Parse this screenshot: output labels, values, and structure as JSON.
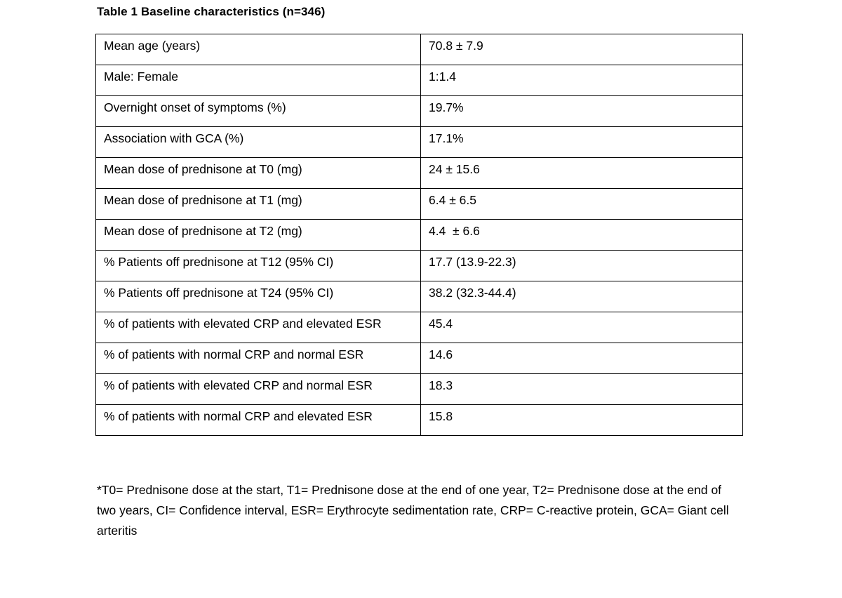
{
  "page": {
    "background": "#ffffff",
    "footnote": "*T0= Prednisone dose at the start, T1= Prednisone dose at the end of one year, T2= Prednisone dose at the end of two years, CI= Confidence interval, ESR= Erythrocyte sedimentation rate, CRP= C-reactive protein, GCA= Giant cell arteritis"
  },
  "colors": {
    "text": "#000000",
    "table_border": "#000000",
    "background": "#ffffff"
  },
  "chart_data": {
    "type": "table",
    "title": "Table 1 Baseline characteristics (n=346)",
    "columns": [
      "characteristic",
      "value"
    ],
    "rows": [
      {
        "label": "Mean age (years)",
        "value": "70.8 ± 7.9"
      },
      {
        "label": "Male: Female",
        "value": "1:1.4"
      },
      {
        "label": "Overnight onset of symptoms (%)",
        "value": "19.7%"
      },
      {
        "label": "Association with GCA (%)",
        "value": "17.1%"
      },
      {
        "label": "Mean dose of prednisone at T0 (mg)",
        "value": "24 ± 15.6"
      },
      {
        "label": "Mean dose of prednisone at T1 (mg)",
        "value": "6.4 ± 6.5"
      },
      {
        "label": "Mean dose of prednisone at T2 (mg)",
        "value": "4.4  ± 6.6"
      },
      {
        "label": "% Patients off prednisone at T12 (95% CI)",
        "value": "17.7 (13.9-22.3)"
      },
      {
        "label": "% Patients off prednisone at T24 (95% CI)",
        "value": "38.2 (32.3-44.4)"
      },
      {
        "label": "% of patients with elevated CRP and elevated ESR",
        "value": "45.4"
      },
      {
        "label": "% of patients with normal CRP and normal ESR",
        "value": "14.6"
      },
      {
        "label": "% of patients with elevated CRP and normal ESR",
        "value": "18.3"
      },
      {
        "label": "% of patients with normal CRP and elevated ESR",
        "value": "15.8"
      }
    ]
  }
}
